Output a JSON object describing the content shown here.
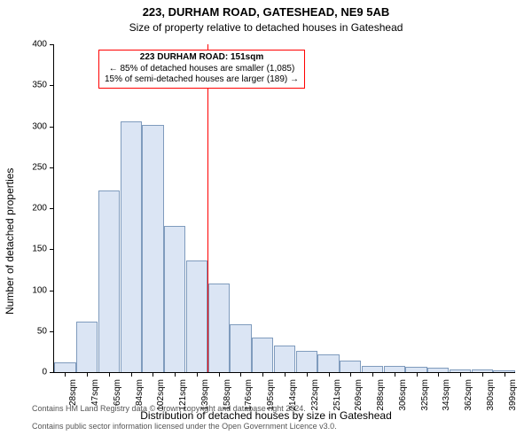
{
  "header": {
    "address": "223, DURHAM ROAD, GATESHEAD, NE9 5AB",
    "subtitle": "Size of property relative to detached houses in Gateshead"
  },
  "chart": {
    "type": "histogram",
    "xlabel": "Distribution of detached houses by size in Gateshead",
    "ylabel": "Number of detached properties",
    "ylim": [
      0,
      400
    ],
    "yticks": [
      0,
      50,
      100,
      150,
      200,
      250,
      300,
      350,
      400
    ],
    "xtick_labels": [
      "28sqm",
      "47sqm",
      "65sqm",
      "84sqm",
      "102sqm",
      "121sqm",
      "139sqm",
      "158sqm",
      "176sqm",
      "195sqm",
      "214sqm",
      "232sqm",
      "251sqm",
      "269sqm",
      "288sqm",
      "306sqm",
      "325sqm",
      "343sqm",
      "362sqm",
      "380sqm",
      "399sqm"
    ],
    "values": [
      12,
      62,
      222,
      306,
      302,
      178,
      136,
      108,
      58,
      42,
      32,
      26,
      22,
      14,
      8,
      8,
      6,
      5,
      3,
      3,
      2
    ],
    "bar_fill": "#dbe5f4",
    "bar_stroke": "#7f9bbd",
    "bar_width_ratio": 0.98,
    "background_color": "#ffffff",
    "axis_color": "#000000",
    "tick_fontsize": 10,
    "label_fontsize": 12,
    "title_fontsize": 13,
    "reference_line": {
      "x_index": 7,
      "color": "#ff0000",
      "width": 1
    },
    "annotation": {
      "title": "223 DURHAM ROAD: 151sqm",
      "line1": "← 85% of detached houses are smaller (1,085)",
      "line2": "15% of semi-detached houses are larger (189) →",
      "border_color": "#ff0000",
      "fontsize": 10
    }
  },
  "footnote": {
    "line1": "Contains HM Land Registry data © Crown copyright and database right 2024.",
    "line2": "Contains public sector information licensed under the Open Government Licence v3.0.",
    "fontsize": 9,
    "color": "#555555"
  }
}
